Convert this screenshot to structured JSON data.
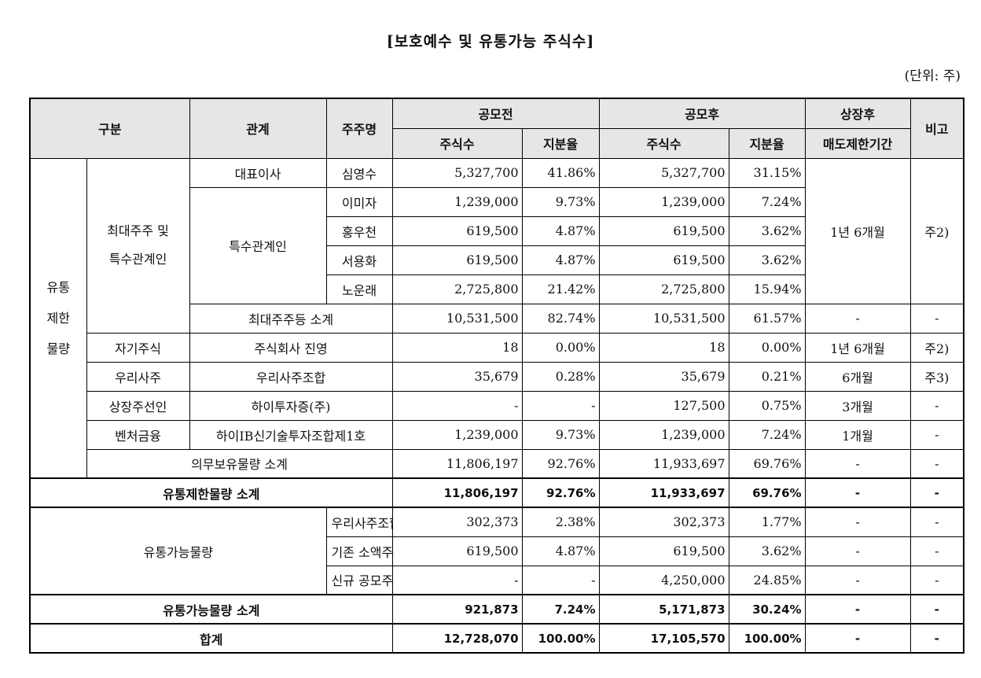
{
  "title": "[보호예수 및 유통가능 주식수]",
  "unit": "(단위: 주)",
  "header": {
    "category": "구분",
    "relation": "관계",
    "holder": "주주명",
    "before_ipo": "공모전",
    "after_ipo": "공모후",
    "after_listing": "상장후",
    "note": "비고",
    "shares": "주식수",
    "ratio": "지분율",
    "lockup_period": "매도제한기간"
  },
  "groups": {
    "restricted": "유통\n제한\n물량",
    "restricted_l1": "유통",
    "restricted_l2": "제한",
    "restricted_l3": "물량",
    "major_l1": "최대주주 및",
    "major_l2": "특수관계인",
    "special_relation": "특수관계인",
    "tradable": "유통가능물량"
  },
  "rows": {
    "r1": {
      "relation": "대표이사",
      "holder": "심영수",
      "s1": "5,327,700",
      "p1": "41.86%",
      "s2": "5,327,700",
      "p2": "31.15%"
    },
    "r2": {
      "holder": "이미자",
      "s1": "1,239,000",
      "p1": "9.73%",
      "s2": "1,239,000",
      "p2": "7.24%"
    },
    "r3": {
      "holder": "홍우천",
      "s1": "619,500",
      "p1": "4.87%",
      "s2": "619,500",
      "p2": "3.62%"
    },
    "r4": {
      "holder": "서용화",
      "s1": "619,500",
      "p1": "4.87%",
      "s2": "619,500",
      "p2": "3.62%"
    },
    "r5": {
      "holder": "노운래",
      "s1": "2,725,800",
      "p1": "21.42%",
      "s2": "2,725,800",
      "p2": "15.94%"
    },
    "major_period": "1년 6개월",
    "major_note": "주2)",
    "r6": {
      "label": "최대주주등 소계",
      "s1": "10,531,500",
      "p1": "82.74%",
      "s2": "10,531,500",
      "p2": "61.57%",
      "period": "-",
      "note": "-"
    },
    "r7": {
      "category": "자기주식",
      "label": "주식회사 진영",
      "s1": "18",
      "p1": "0.00%",
      "s2": "18",
      "p2": "0.00%",
      "period": "1년 6개월",
      "note": "주2)"
    },
    "r8": {
      "category": "우리사주",
      "label": "우리사주조합",
      "s1": "35,679",
      "p1": "0.28%",
      "s2": "35,679",
      "p2": "0.21%",
      "period": "6개월",
      "note": "주3)"
    },
    "r9": {
      "category": "상장주선인",
      "label": "하이투자증(주)",
      "s1": "-",
      "p1": "-",
      "s2": "127,500",
      "p2": "0.75%",
      "period": "3개월",
      "note": "-"
    },
    "r10": {
      "category": "벤처금융",
      "label": "하이IB신기술투자조합제1호",
      "s1": "1,239,000",
      "p1": "9.73%",
      "s2": "1,239,000",
      "p2": "7.24%",
      "period": "1개월",
      "note": "-"
    },
    "r11": {
      "label": "의무보유물량 소계",
      "s1": "11,806,197",
      "p1": "92.76%",
      "s2": "11,933,697",
      "p2": "69.76%",
      "period": "-",
      "note": "-"
    },
    "r12": {
      "label": "유통제한물량 소계",
      "s1": "11,806,197",
      "p1": "92.76%",
      "s2": "11,933,697",
      "p2": "69.76%",
      "period": "-",
      "note": "-"
    },
    "r13": {
      "label": "우리사주조합",
      "s1": "302,373",
      "p1": "2.38%",
      "s2": "302,373",
      "p2": "1.77%",
      "period": "-",
      "note": "-"
    },
    "r14": {
      "label": "기존 소액주주",
      "s1": "619,500",
      "p1": "4.87%",
      "s2": "619,500",
      "p2": "3.62%",
      "period": "-",
      "note": "-"
    },
    "r15": {
      "label": "신규 공모주주",
      "s1": "-",
      "p1": "-",
      "s2": "4,250,000",
      "p2": "24.85%",
      "period": "-",
      "note": "-"
    },
    "r16": {
      "label": "유통가능물량 소계",
      "s1": "921,873",
      "p1": "7.24%",
      "s2": "5,171,873",
      "p2": "30.24%",
      "period": "-",
      "note": "-"
    },
    "r17": {
      "label": "합계",
      "s1": "12,728,070",
      "p1": "100.00%",
      "s2": "17,105,570",
      "p2": "100.00%",
      "period": "-",
      "note": "-"
    }
  }
}
